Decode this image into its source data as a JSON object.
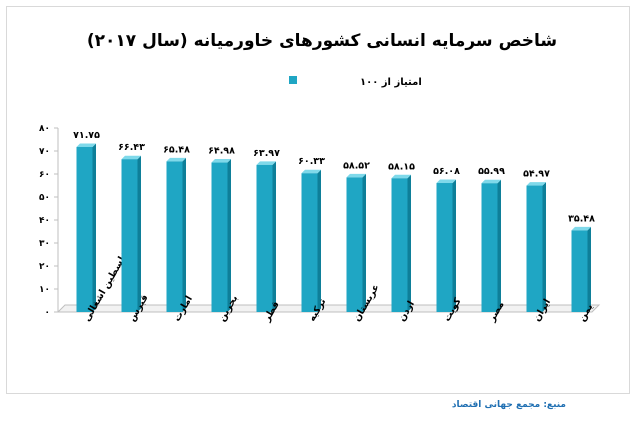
{
  "chart_data": {
    "type": "bar",
    "title": "شاخص سرمایه انسانی کشورهای خاورمیانه  (سال ۲۰۱۷)",
    "legend": {
      "label": "امتیاز از ۱۰۰",
      "position": "top-center"
    },
    "categories": [
      "فلسطین اشغالی",
      "قبرس",
      "امارت",
      "بحرین",
      "قطر",
      "ترکیه",
      "عربستان",
      "اردن",
      "کویت",
      "مصر",
      "ایران",
      "یمن"
    ],
    "value_labels": [
      "۷۱.۷۵",
      "۶۶.۴۳",
      "۶۵.۴۸",
      "۶۴.۹۸",
      "۶۳.۹۷",
      "۶۰.۳۳",
      "۵۸.۵۲",
      "۵۸.۱۵",
      "۵۶.۰۸",
      "۵۵.۹۹",
      "۵۴.۹۷",
      "۳۵.۴۸"
    ],
    "series": [
      {
        "values": [
          71.75,
          66.43,
          65.48,
          64.98,
          63.97,
          60.33,
          58.52,
          58.15,
          56.08,
          55.99,
          54.97,
          35.48
        ]
      }
    ],
    "ylim": [
      0,
      80
    ],
    "yticks": [
      0,
      10,
      20,
      30,
      40,
      50,
      60,
      70,
      80
    ],
    "ytick_labels": [
      "۰",
      "۱۰",
      "۲۰",
      "۳۰",
      "۴۰",
      "۵۰",
      "۶۰",
      "۷۰",
      "۸۰"
    ],
    "grid": false,
    "colors": {
      "bar": "#1fa6c4",
      "bar_dark": "#0e7f99",
      "bar_light": "#7fd9ea",
      "label": "#000000"
    }
  },
  "source": "منبع: مجمع جهانی اقتصاد"
}
